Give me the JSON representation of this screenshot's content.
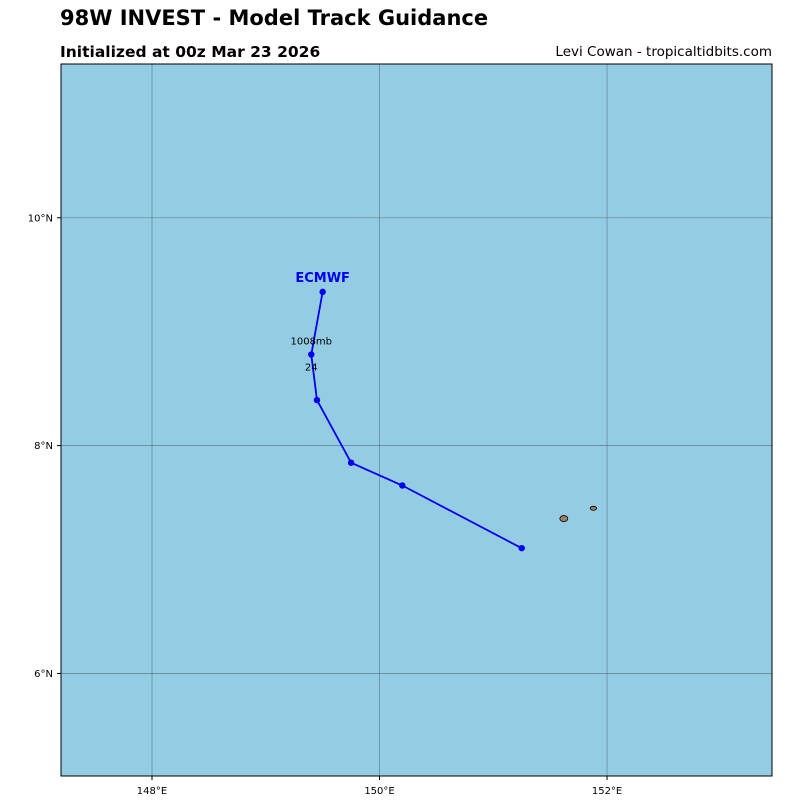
{
  "header": {
    "title": "98W INVEST - Model Track Guidance",
    "subtitle": "Initialized at 00z Mar 23 2026",
    "credit": "Levi Cowan - tropicaltidbits.com"
  },
  "colors": {
    "ocean": "#94cde3",
    "land": "#a08060",
    "track": "#0000ee",
    "grid": "#4d6f7a"
  },
  "chart_data": {
    "type": "line",
    "x_ticks": [
      {
        "value": 148,
        "label": "148°E"
      },
      {
        "value": 150,
        "label": "150°E"
      },
      {
        "value": 152,
        "label": "152°E"
      }
    ],
    "y_ticks": [
      {
        "value": 10,
        "label": "10°N"
      },
      {
        "value": 8,
        "label": "8°N"
      },
      {
        "value": 6,
        "label": "6°N"
      }
    ],
    "xlim": [
      147.2,
      153.45
    ],
    "ylim": [
      5.1,
      11.35
    ],
    "grid": true,
    "series": [
      {
        "name": "ECMWF",
        "points": [
          {
            "lon": 149.5,
            "lat": 9.35
          },
          {
            "lon": 149.4,
            "lat": 8.8,
            "pressure": "1008mb",
            "hour": "24"
          },
          {
            "lon": 149.45,
            "lat": 8.4
          },
          {
            "lon": 149.75,
            "lat": 7.85
          },
          {
            "lon": 150.2,
            "lat": 7.65
          },
          {
            "lon": 151.25,
            "lat": 7.1
          }
        ]
      }
    ],
    "islands": [
      {
        "lon": 151.62,
        "lat": 7.36
      },
      {
        "lon": 151.88,
        "lat": 7.45
      }
    ]
  }
}
